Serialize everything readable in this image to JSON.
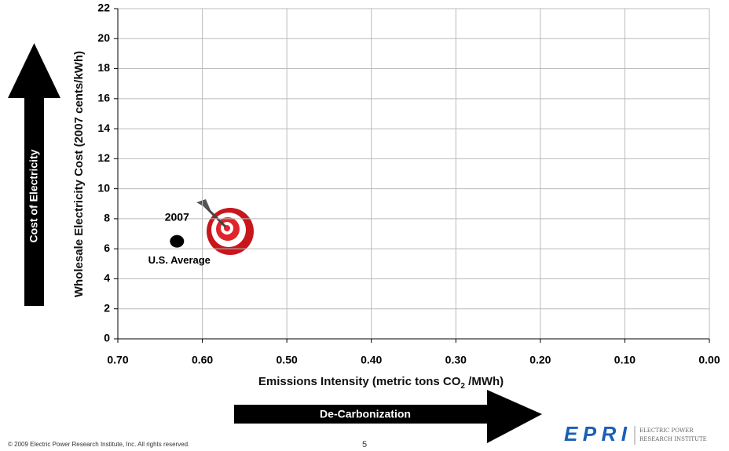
{
  "chart_data": {
    "type": "scatter",
    "xlabel_parts": [
      "Emissions Intensity (metric tons CO",
      "2",
      " /MWh)"
    ],
    "ylabel": "Wholesale Electricity Cost (2007 cents/kWh)",
    "x": [
      0.63
    ],
    "values": [
      6.5
    ],
    "color": "#000000",
    "xlim": [
      0.7,
      0
    ],
    "ylim": [
      0,
      22
    ],
    "xticks": [
      {
        "value": 0.7,
        "label": "0.70"
      },
      {
        "value": 0.6,
        "label": "0.60"
      },
      {
        "value": 0.5,
        "label": "0.50"
      },
      {
        "value": 0.4,
        "label": "0.40"
      },
      {
        "value": 0.3,
        "label": "0.30"
      },
      {
        "value": 0.2,
        "label": "0.20"
      },
      {
        "value": 0.1,
        "label": "0.10"
      },
      {
        "value": 0,
        "label": "0.00"
      }
    ],
    "yticks": [
      0,
      2,
      4,
      6,
      8,
      10,
      12,
      14,
      16,
      18,
      20,
      22
    ],
    "grid": true,
    "annotations": [
      "2007",
      "U.S. Average"
    ]
  },
  "side_arrow": "Cost of Electricity",
  "bottom_arrow": "De-Carbonization",
  "footer": {
    "copyright": "© 2009 Electric Power Research Institute, Inc. All rights reserved.",
    "page": "5"
  },
  "logo": {
    "mark": "EPRI",
    "line1": "ELECTRIC POWER",
    "line2": "RESEARCH INSTITUTE"
  }
}
